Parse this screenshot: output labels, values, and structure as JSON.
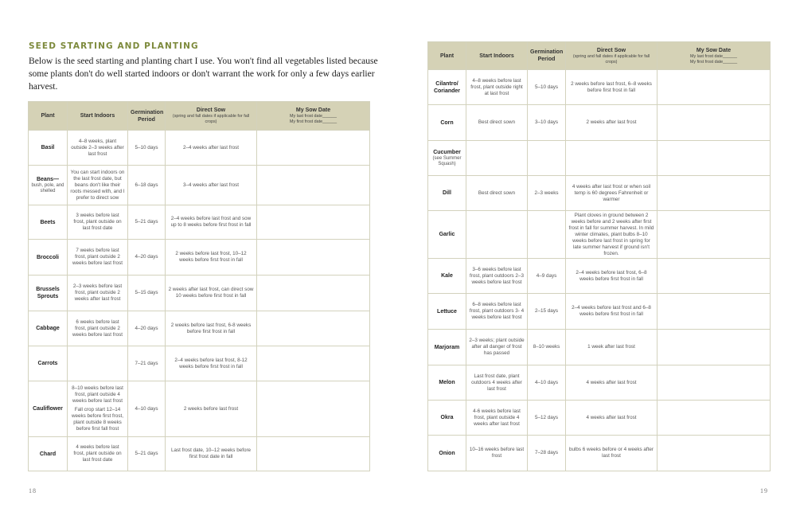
{
  "left_page": {
    "heading": "SEED STARTING AND PLANTING",
    "intro": "Below is the seed starting and planting chart I use. You won't find all vegetables listed because some plants don't do well started indoors or don't warrant the work for only a few days earlier harvest.",
    "page_number": "18"
  },
  "right_page": {
    "page_number": "19"
  },
  "table_header": {
    "plant": "Plant",
    "start_indoors": "Start Indoors",
    "germination": "Germination Period",
    "direct_sow": "Direct Sow",
    "direct_sow_note": "(spring and fall dates if applicable for fall crops)",
    "my_sow_date": "My Sow Date",
    "last_frost": "My last frost date______",
    "first_frost": "My first frost date______"
  },
  "colors": {
    "heading": "#7d8a3c",
    "header_bg": "#d5d2b6",
    "border": "#d3d2bd"
  },
  "left_rows": [
    {
      "plant": "Basil",
      "indoors": [
        "4–8 weeks, plant outside 2–3 weeks after last frost"
      ],
      "germ": "5–10 days",
      "sow": "2–4 weeks after last frost"
    },
    {
      "plant": "Beans—",
      "plant_sub": "bush, pole, and shelled",
      "indoors": [
        "You can start indoors on the last frost date, but beans don't like their roots messed with, and I prefer to direct sow"
      ],
      "germ": "6–18 days",
      "sow": "3–4 weeks after last frost"
    },
    {
      "plant": "Beets",
      "indoors": [
        "3 weeks before last frost, plant outside on last frost date"
      ],
      "germ": "5–21 days",
      "sow": "2–4 weeks before last frost and sow up to 8 weeks before first frost in fall"
    },
    {
      "plant": "Broccoli",
      "indoors": [
        "7 weeks before last frost, plant outside 2 weeks before last frost"
      ],
      "germ": "4–20 days",
      "sow": "2 weeks before last frost, 10–12 weeks before first frost in fall"
    },
    {
      "plant": "Brussels Sprouts",
      "indoors": [
        "2–3 weeks before last frost, plant outside 2 weeks after last frost"
      ],
      "germ": "5–15 days",
      "sow": "2 weeks after last frost, can direct sow 10 weeks before first frost in fall"
    },
    {
      "plant": "Cabbage",
      "indoors": [
        "6 weeks before last frost, plant outside 2 weeks before last frost"
      ],
      "germ": "4–20 days",
      "sow": "2 weeks before last frost, 6-8 weeks before first frost in fall"
    },
    {
      "plant": "Carrots",
      "indoors": [],
      "germ": "7–21 days",
      "sow": "2–4 weeks before last frost, 8-12 weeks before first frost in fall"
    },
    {
      "plant": "Cauliflower",
      "indoors": [
        "8–10 weeks before last frost, plant outside 4 weeks before last frost",
        "Fall crop start 12–14 weeks before first frost, plant outside 8 weeks before first fall frost"
      ],
      "germ": "4–10 days",
      "sow": "2 weeks before last frost"
    },
    {
      "plant": "Chard",
      "indoors": [
        "4 weeks before last frost, plant outside on last frost date"
      ],
      "germ": "5–21 days",
      "sow": "Last frost date, 10–12 weeks before first frost date in fall"
    }
  ],
  "right_rows": [
    {
      "plant": "Cilantro/ Coriander",
      "indoors": [
        "4–8 weeks before last frost, plant outside right at last frost"
      ],
      "germ": "5–10 days",
      "sow": "2 weeks before last frost, 6–8 weeks before first frost in fall"
    },
    {
      "plant": "Corn",
      "indoors": [
        "Best direct sown"
      ],
      "germ": "3–10 days",
      "sow": "2 weeks after last frost"
    },
    {
      "plant": "Cucumber",
      "plant_sub": "(see Summer Squash)",
      "indoors": [],
      "germ": "",
      "sow": ""
    },
    {
      "plant": "Dill",
      "indoors": [
        "Best direct sown"
      ],
      "germ": "2–3 weeks",
      "sow": "4 weeks after last frost or when soil temp is 60 degrees Fahrenheit or warmer"
    },
    {
      "plant": "Garlic",
      "indoors": [],
      "germ": "",
      "sow": "Plant cloves in ground between 2 weeks before and 2 weeks after first frost in fall for summer harvest. In mild winter climates, plant bulbs 8–10 weeks before last frost in spring for late summer harvest if ground isn't frozen."
    },
    {
      "plant": "Kale",
      "indoors": [
        "3–6 weeks before last frost, plant outdoors 2–3 weeks before last frost"
      ],
      "germ": "4–9 days",
      "sow": "2–4 weeks before last frost, 6–8 weeks before first frost in fall"
    },
    {
      "plant": "Lettuce",
      "indoors": [
        "6–8 weeks before last frost, plant outdoors 3- 4 weeks before last frost"
      ],
      "germ": "2–15 days",
      "sow": "2–4 weeks before last frost and 6–8 weeks before first frost in fall"
    },
    {
      "plant": "Marjoram",
      "indoors": [
        "2–3 weeks; plant outside after all danger of frost has passed"
      ],
      "germ": "8–10 weeks",
      "sow": "1 week after last frost"
    },
    {
      "plant": "Melon",
      "indoors": [
        "Last frost date, plant outdoors 4 weeks after last frost"
      ],
      "germ": "4–10 days",
      "sow": "4 weeks after last frost"
    },
    {
      "plant": "Okra",
      "indoors": [
        "4-6 weeks before last frost, plant outside 4 weeks after last frost"
      ],
      "germ": "5–12 days",
      "sow": "4 weeks after last frost"
    },
    {
      "plant": "Onion",
      "indoors": [
        "10–16 weeks before last frost"
      ],
      "germ": "7–28 days",
      "sow": "bulbs 6 weeks before or 4 weeks after last frost"
    }
  ]
}
